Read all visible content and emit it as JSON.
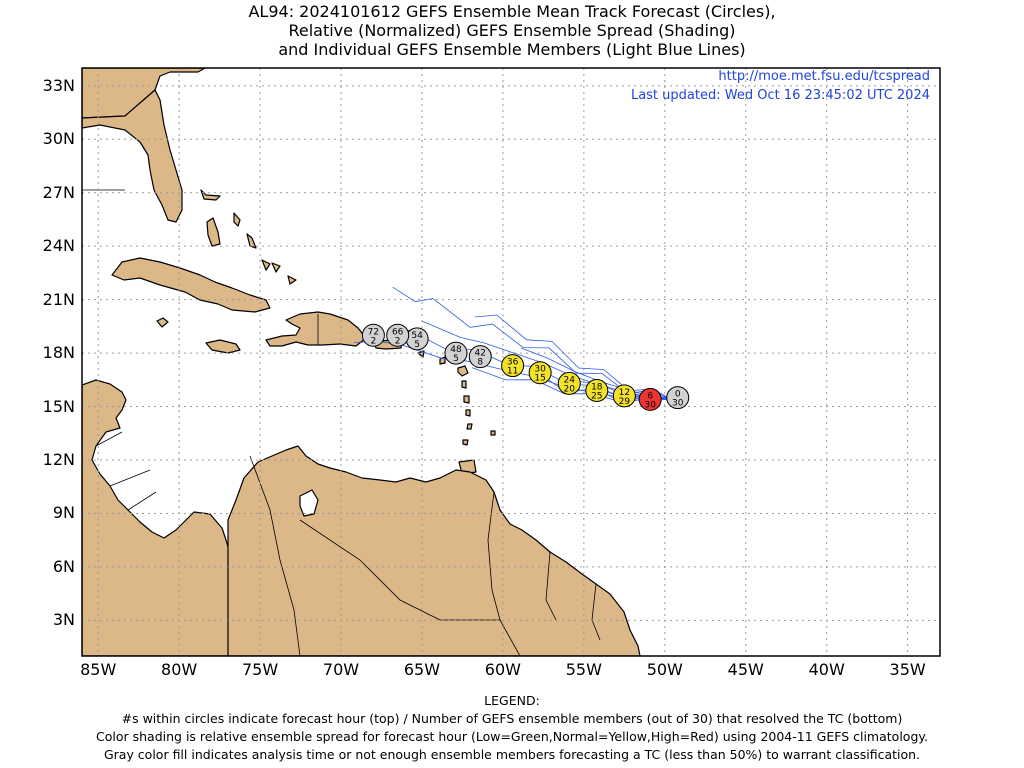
{
  "title": {
    "line1": "AL94: 2024101612 GEFS Ensemble Mean Track Forecast (Circles),",
    "line2": "Relative (Normalized) GEFS Ensemble Spread (Shading)",
    "line3": "and Individual GEFS Ensemble Members (Light Blue Lines)"
  },
  "header_info": {
    "url": "http://moe.met.fsu.edu/tcspread",
    "updated": "Last updated: Wed Oct 16 23:45:02 UTC 2024"
  },
  "map": {
    "lon_range": [
      -86,
      -33
    ],
    "lat_range": [
      1,
      34
    ],
    "lat_ticks": [
      {
        "value": 33,
        "label": "33N"
      },
      {
        "value": 30,
        "label": "30N"
      },
      {
        "value": 27,
        "label": "27N"
      },
      {
        "value": 24,
        "label": "24N"
      },
      {
        "value": 21,
        "label": "21N"
      },
      {
        "value": 18,
        "label": "18N"
      },
      {
        "value": 15,
        "label": "15N"
      },
      {
        "value": 12,
        "label": "12N"
      },
      {
        "value": 9,
        "label": "9N"
      },
      {
        "value": 6,
        "label": "6N"
      },
      {
        "value": 3,
        "label": "3N"
      }
    ],
    "lon_ticks": [
      {
        "value": -85,
        "label": "85W"
      },
      {
        "value": -80,
        "label": "80W"
      },
      {
        "value": -75,
        "label": "75W"
      },
      {
        "value": -70,
        "label": "70W"
      },
      {
        "value": -65,
        "label": "65W"
      },
      {
        "value": -60,
        "label": "60W"
      },
      {
        "value": -55,
        "label": "55W"
      },
      {
        "value": -50,
        "label": "50W"
      },
      {
        "value": -45,
        "label": "45W"
      },
      {
        "value": -40,
        "label": "40W"
      },
      {
        "value": -35,
        "label": "35W"
      }
    ],
    "gridlines": "dotted",
    "colors": {
      "land": "#dcb888",
      "coast": "#000000",
      "member_tracks": "#2e5be8",
      "gray": "#d2d2d2",
      "yellow": "#f2e22a",
      "red": "#ee3333",
      "green": "#33cc33",
      "info_text": "#2244dd"
    }
  },
  "chart_data": {
    "type": "scatter",
    "description_fields": [
      "hour",
      "members",
      "lon",
      "lat",
      "spread"
    ],
    "track_points": [
      {
        "hour": "0",
        "members": "30",
        "lon": -49.2,
        "lat": 15.5,
        "spread": "gray"
      },
      {
        "hour": "6",
        "members": "30",
        "lon": -50.9,
        "lat": 15.4,
        "spread": "red"
      },
      {
        "hour": "12",
        "members": "29",
        "lon": -52.5,
        "lat": 15.6,
        "spread": "yellow"
      },
      {
        "hour": "18",
        "members": "25",
        "lon": -54.2,
        "lat": 15.9,
        "spread": "yellow"
      },
      {
        "hour": "24",
        "members": "20",
        "lon": -55.9,
        "lat": 16.3,
        "spread": "yellow"
      },
      {
        "hour": "30",
        "members": "15",
        "lon": -57.7,
        "lat": 16.9,
        "spread": "yellow"
      },
      {
        "hour": "36",
        "members": "11",
        "lon": -59.4,
        "lat": 17.3,
        "spread": "yellow"
      },
      {
        "hour": "42",
        "members": "8",
        "lon": -61.4,
        "lat": 17.8,
        "spread": "gray"
      },
      {
        "hour": "48",
        "members": "5",
        "lon": -62.9,
        "lat": 18.0,
        "spread": "gray"
      },
      {
        "hour": "54",
        "members": "5",
        "lon": -65.3,
        "lat": 18.8,
        "spread": "gray"
      },
      {
        "hour": "66",
        "members": "2",
        "lon": -66.5,
        "lat": 19.0,
        "spread": "gray"
      },
      {
        "hour": "72",
        "members": "2",
        "lon": -68.0,
        "lat": 19.0,
        "spread": "gray"
      }
    ]
  },
  "legend": {
    "heading": "LEGEND:",
    "line1": "#s within circles indicate forecast hour (top) / Number of GEFS ensemble members (out of 30) that resolved the TC (bottom)",
    "line2": "Color shading is relative ensemble spread for forecast hour (Low=Green,Normal=Yellow,High=Red) using 2004-11 GEFS climatology.",
    "line3": "Gray color fill indicates analysis time or not enough ensemble members forecasting a TC (less than 50%) to warrant classification."
  }
}
